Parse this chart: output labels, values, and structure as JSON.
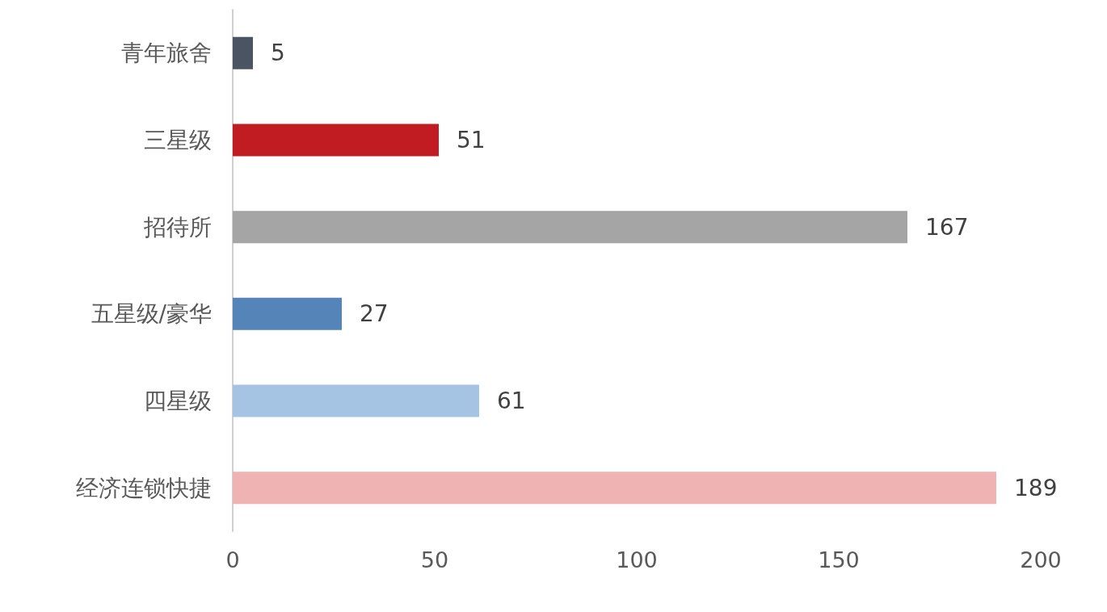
{
  "chart_data": {
    "type": "bar",
    "orientation": "horizontal",
    "categories": [
      "青年旅舍",
      "三星级",
      "招待所",
      "五星级/豪华",
      "四星级",
      "经济连锁快捷"
    ],
    "values": [
      5,
      51,
      167,
      27,
      61,
      189
    ],
    "colors": [
      "#4a5462",
      "#c01c22",
      "#a5a5a5",
      "#5585b8",
      "#a5c4e3",
      "#f0b3b4"
    ],
    "xlim": [
      0,
      200
    ],
    "xticks": [
      0,
      50,
      100,
      150,
      200
    ],
    "grid": false,
    "data_labels": true
  }
}
